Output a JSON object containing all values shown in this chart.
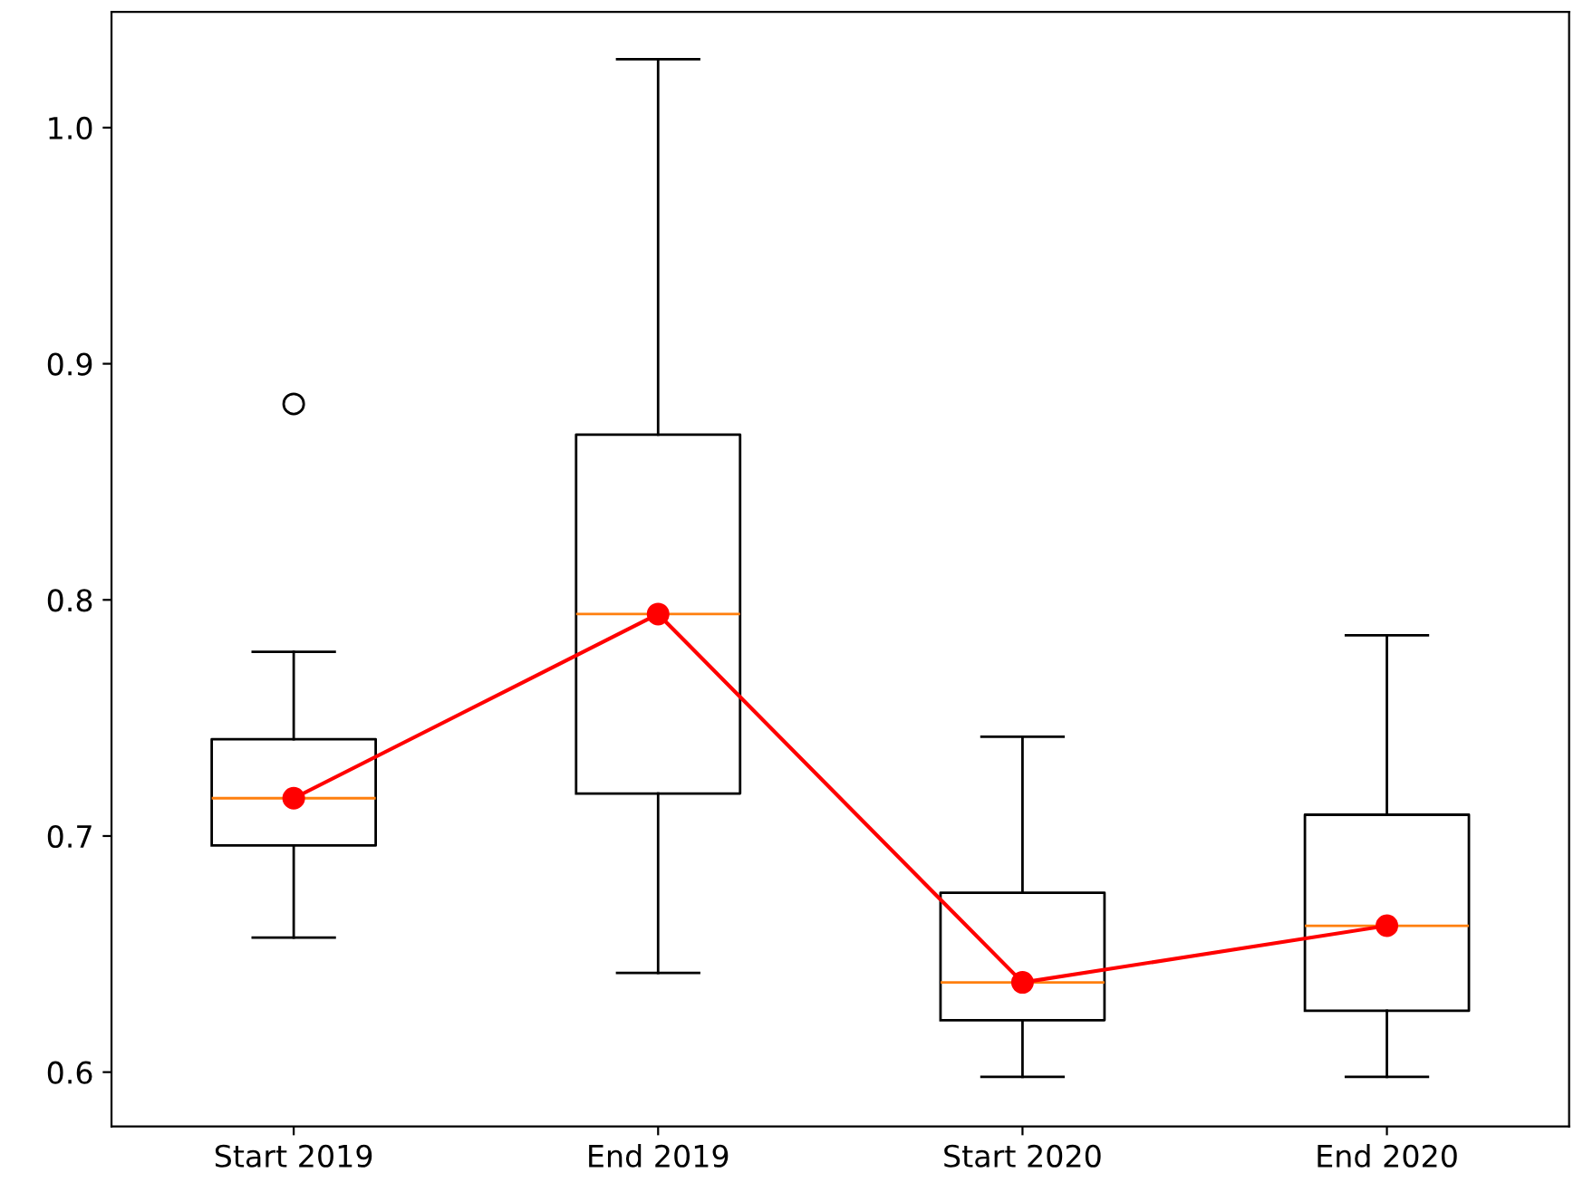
{
  "chart_data": {
    "type": "box",
    "categories": [
      "Start 2019",
      "End 2019",
      "Start 2020",
      "End 2020"
    ],
    "boxes": [
      {
        "low": 0.657,
        "q1": 0.696,
        "median": 0.716,
        "q3": 0.741,
        "high": 0.778,
        "outliers": [
          0.883
        ]
      },
      {
        "low": 0.642,
        "q1": 0.718,
        "median": 0.794,
        "q3": 0.87,
        "high": 1.029
      },
      {
        "low": 0.598,
        "q1": 0.622,
        "median": 0.638,
        "q3": 0.676,
        "high": 0.742
      },
      {
        "low": 0.598,
        "q1": 0.626,
        "median": 0.662,
        "q3": 0.709,
        "high": 0.785
      }
    ],
    "series": [
      {
        "type": "line",
        "color": "#ff0000",
        "x": [
          "Start 2019",
          "End 2019",
          "Start 2020",
          "End 2020"
        ],
        "values": [
          0.716,
          0.794,
          0.638,
          0.662
        ],
        "marker": "circle"
      }
    ],
    "ylim": [
      0.577,
      1.049
    ],
    "yticks": [
      0.6,
      0.7,
      0.8,
      0.9,
      {
        "value": 1.0,
        "label": "1.0"
      }
    ],
    "grid": false,
    "legend": false
  }
}
